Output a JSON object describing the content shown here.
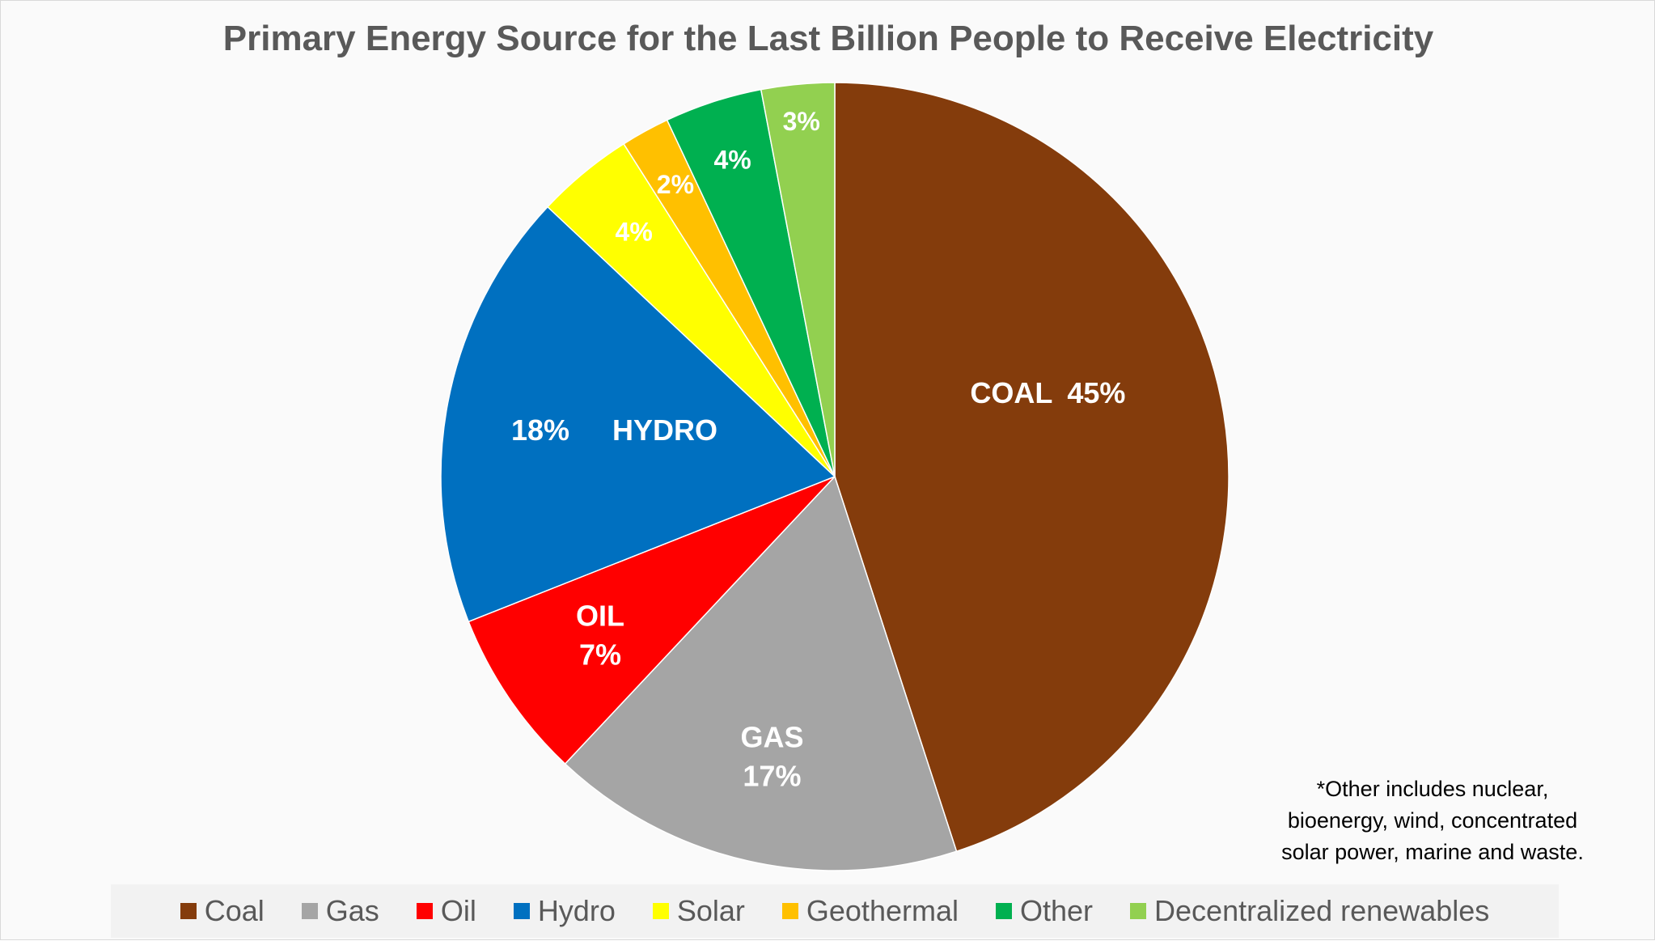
{
  "chart_data": {
    "type": "pie",
    "title": "Primary Energy Source for the Last Billion People to  Receive Electricity",
    "slices": [
      {
        "name": "Coal",
        "value": 45,
        "color": "#843c0c",
        "labels": [
          "COAL",
          "45%"
        ]
      },
      {
        "name": "Gas",
        "value": 17,
        "color": "#a5a5a5",
        "labels": [
          "GAS",
          "17%"
        ]
      },
      {
        "name": "Oil",
        "value": 7,
        "color": "#ff0000",
        "labels": [
          "OIL",
          "7%"
        ]
      },
      {
        "name": "Hydro",
        "value": 18,
        "color": "#0070c0",
        "labels": [
          "18%",
          "HYDRO"
        ]
      },
      {
        "name": "Solar",
        "value": 4,
        "color": "#ffff00",
        "labels": [
          "4%"
        ]
      },
      {
        "name": "Geothermal",
        "value": 2,
        "color": "#ffc000",
        "labels": [
          "2%"
        ]
      },
      {
        "name": "Other",
        "value": 4,
        "color": "#00b050",
        "labels": [
          "4%"
        ]
      },
      {
        "name": "Decentralized renewables",
        "value": 3,
        "color": "#92d050",
        "labels": [
          "3%"
        ]
      }
    ],
    "legend_position": "bottom"
  },
  "footnote": {
    "lines": [
      "*Other includes nuclear,",
      "bioenergy, wind, concentrated",
      "solar power, marine and waste."
    ]
  }
}
